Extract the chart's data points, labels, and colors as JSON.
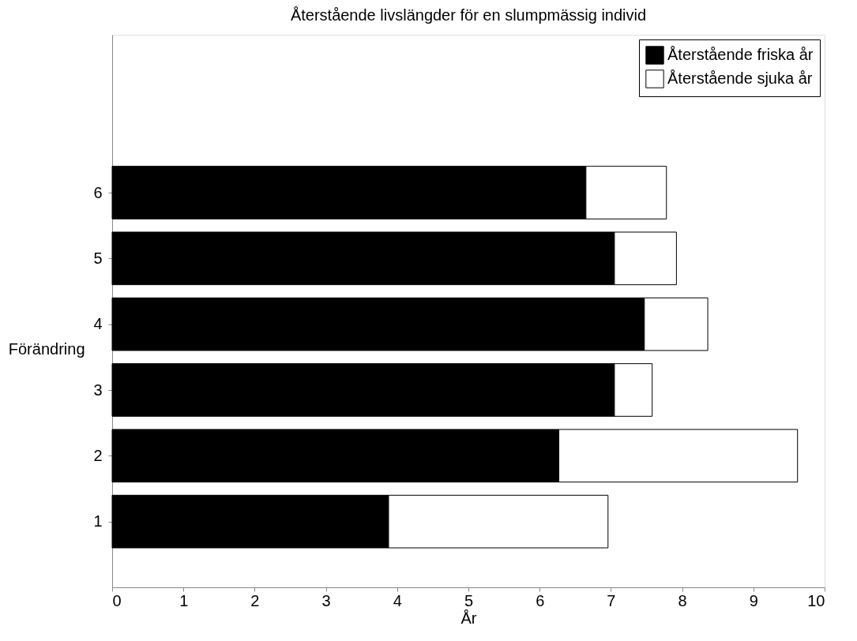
{
  "chart_data": {
    "type": "bar",
    "orientation": "horizontal",
    "stacked": true,
    "title": "Återstående livslängder för en slumpmässig individ",
    "xlabel": "År",
    "ylabel": "Förändring",
    "categories": [
      "6",
      "5",
      "4",
      "3",
      "2",
      "1"
    ],
    "series": [
      {
        "name": "Återstående friska år",
        "color": "#000000",
        "values": [
          6.65,
          7.05,
          7.47,
          7.05,
          6.27,
          3.88
        ]
      },
      {
        "name": "Återstående sjuka år",
        "color": "#ffffff",
        "values": [
          1.13,
          0.87,
          0.89,
          0.53,
          3.35,
          3.08
        ]
      }
    ],
    "xlim": [
      0,
      10
    ],
    "xticks": [
      0,
      1,
      2,
      3,
      4,
      5,
      6,
      7,
      8,
      9,
      10
    ],
    "legend": "top right",
    "grid": false
  }
}
